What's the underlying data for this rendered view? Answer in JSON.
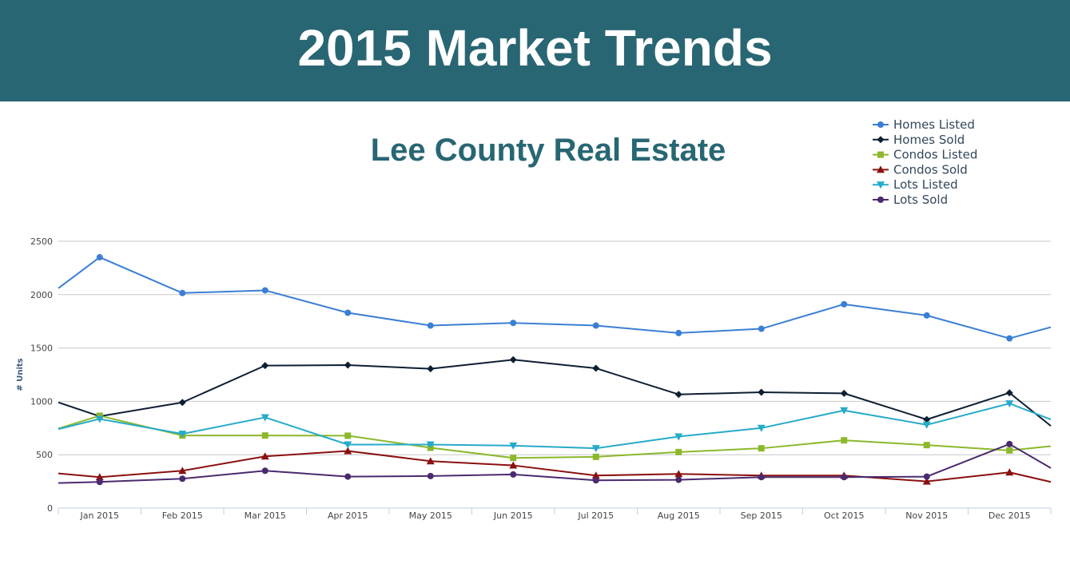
{
  "header": {
    "title": "2015 Market Trends"
  },
  "chart_data": {
    "type": "line",
    "title": "Lee County Real Estate",
    "ylabel": "# Units",
    "xlabel": "",
    "ylim": [
      0,
      2500
    ],
    "yticks": [
      0,
      500,
      1000,
      1500,
      2000,
      2500
    ],
    "grid": true,
    "legend_position": "top-right",
    "categories": [
      "Jan 2015",
      "Feb 2015",
      "Mar 2015",
      "Apr 2015",
      "May 2015",
      "Jun 2015",
      "Jul 2015",
      "Aug 2015",
      "Sep 2015",
      "Oct 2015",
      "Nov 2015",
      "Dec 2015"
    ],
    "series": [
      {
        "name": "Homes Listed",
        "color": "#3a7fd5",
        "marker": "circle",
        "values": [
          2350,
          2015,
          2040,
          1830,
          1710,
          1735,
          1710,
          1640,
          1680,
          1910,
          1805,
          1590
        ],
        "edge_before": 2060,
        "edge_after": 1695
      },
      {
        "name": "Homes Sold",
        "color": "#0e1e33",
        "marker": "diamond",
        "values": [
          860,
          990,
          1335,
          1340,
          1305,
          1390,
          1310,
          1065,
          1085,
          1075,
          830,
          1080
        ],
        "edge_before": 990,
        "edge_after": 770
      },
      {
        "name": "Condos Listed",
        "color": "#8cb82b",
        "marker": "square",
        "values": [
          865,
          680,
          680,
          678,
          565,
          470,
          480,
          525,
          560,
          635,
          590,
          540
        ],
        "edge_before": 745,
        "edge_after": 580
      },
      {
        "name": "Condos Sold",
        "color": "#8b1010",
        "marker": "triangle",
        "values": [
          290,
          350,
          485,
          535,
          440,
          400,
          305,
          320,
          305,
          305,
          250,
          335
        ],
        "edge_before": 325,
        "edge_after": 245
      },
      {
        "name": "Lots Listed",
        "color": "#26aac9",
        "marker": "triangle-down",
        "values": [
          835,
          695,
          850,
          595,
          595,
          585,
          560,
          670,
          750,
          915,
          780,
          980
        ],
        "edge_before": 740,
        "edge_after": 830
      },
      {
        "name": "Lots Sold",
        "color": "#4a2a6e",
        "marker": "circle",
        "values": [
          245,
          275,
          350,
          295,
          300,
          315,
          260,
          265,
          290,
          290,
          295,
          600
        ],
        "edge_before": 235,
        "edge_after": 375
      }
    ]
  }
}
